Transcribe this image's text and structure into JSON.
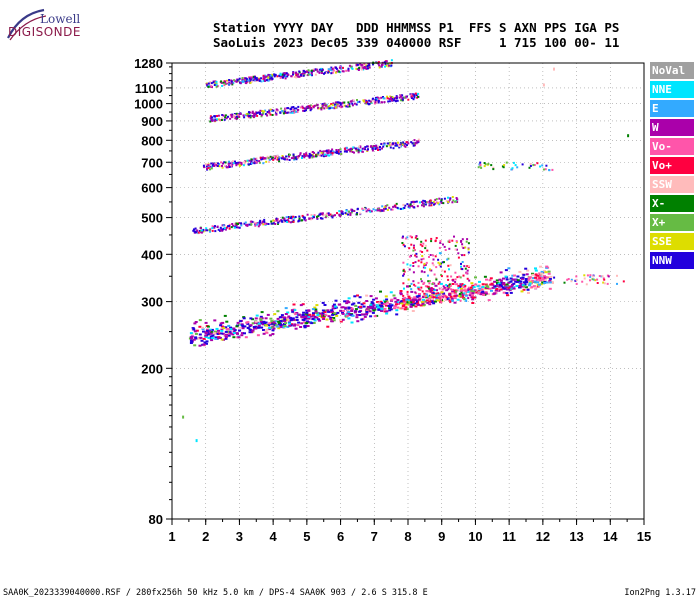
{
  "logo": {
    "line1": "Lowell",
    "line2": "DIGISONDE"
  },
  "header": {
    "row1": "Station YYYY DAY   DDD HHMMSS P1  FFS S AXN PPS IGA PS",
    "row2": "SaoLuis 2023 Dec05 339 040000 RSF     1 715 100 00- 11"
  },
  "legend": [
    {
      "label": "NoVal",
      "color": "#a0a0a0"
    },
    {
      "label": "NNE",
      "color": "#00e5ff"
    },
    {
      "label": "E",
      "color": "#33aaff"
    },
    {
      "label": "W",
      "color": "#aa00aa"
    },
    {
      "label": "Vo-",
      "color": "#ff55aa"
    },
    {
      "label": "Vo+",
      "color": "#ff0040"
    },
    {
      "label": "SSW",
      "color": "#ffbbbb"
    },
    {
      "label": "X-",
      "color": "#008000"
    },
    {
      "label": "X+",
      "color": "#66bb44"
    },
    {
      "label": "SSE",
      "color": "#dddd00"
    },
    {
      "label": "NNW",
      "color": "#2200dd"
    }
  ],
  "footer": {
    "left": "SAA0K_2023339040000.RSF / 280fx256h 50 kHz 5.0 km / DPS-4 SAA0K 903 / 2.6 S 315.8 E",
    "right": "Ion2Png 1.3.17"
  },
  "chart_data": {
    "type": "scatter",
    "x_ticks": [
      "1",
      "2",
      "3",
      "4",
      "5",
      "6",
      "7",
      "8",
      "9",
      "10",
      "11",
      "12",
      "13",
      "14",
      "15"
    ],
    "y_ticks": [
      "80",
      "200",
      "300",
      "400",
      "500",
      "600",
      "700",
      "800",
      "900",
      "1000",
      "1100",
      "1280"
    ],
    "xlim": [
      1,
      15
    ],
    "ylim": [
      80,
      1280
    ],
    "y_scale": "log",
    "grid": true,
    "traces": [
      {
        "name": "F trace",
        "x_start": 1.5,
        "x_end": 12.2,
        "y_start": 240,
        "y_end": 345
      },
      {
        "name": "2F trace",
        "x_start": 1.6,
        "x_end": 9.5,
        "y_start": 460,
        "y_end": 560
      },
      {
        "name": "3F trace",
        "x_start": 1.9,
        "x_end": 8.3,
        "y_start": 680,
        "y_end": 790
      },
      {
        "name": "4F trace",
        "x_start": 2.1,
        "x_end": 8.3,
        "y_start": 910,
        "y_end": 1050
      },
      {
        "name": "5F trace",
        "x_start": 2.0,
        "x_end": 7.5,
        "y_start": 1120,
        "y_end": 1280
      }
    ],
    "scatter_clusters": [
      {
        "x_min": 10.0,
        "x_max": 12.3,
        "y_min": 670,
        "y_max": 705
      },
      {
        "x_min": 12.2,
        "x_max": 14.4,
        "y_min": 335,
        "y_max": 355
      },
      {
        "x_min": 7.8,
        "x_max": 9.8,
        "y_min": 300,
        "y_max": 450
      }
    ],
    "isolated_points": [
      {
        "x": 14.5,
        "y": 830
      },
      {
        "x": 12.3,
        "y": 1245
      },
      {
        "x": 12.0,
        "y": 1130
      },
      {
        "x": 1.3,
        "y": 150
      },
      {
        "x": 1.7,
        "y": 130
      }
    ]
  }
}
